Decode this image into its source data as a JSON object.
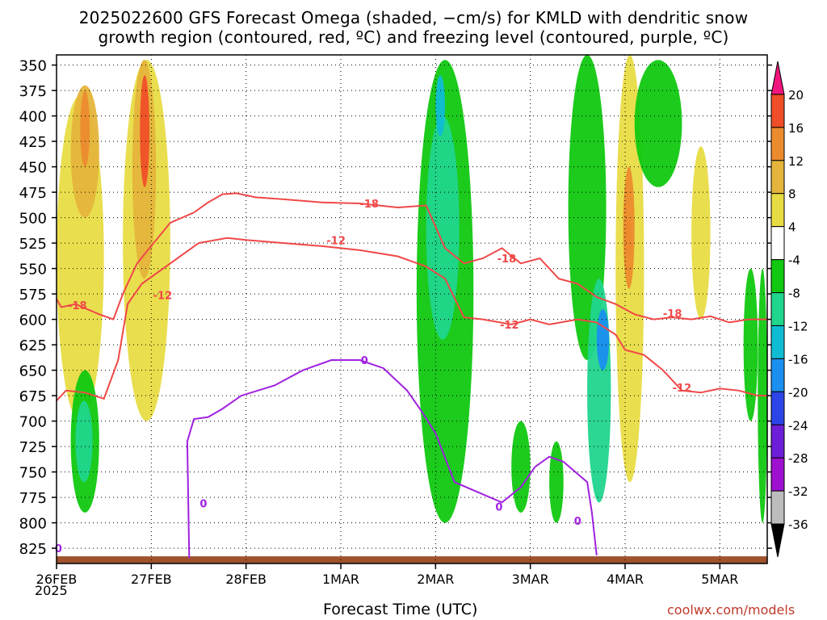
{
  "chart_data": {
    "type": "heatmap",
    "title": "2025022600 GFS Forecast Omega (shaded, −cm/s) for KMLD with dendritic snow",
    "subtitle": "growth region (contoured, red, ºC) and freezing level (contoured, purple, ºC)",
    "xlabel": "Forecast Time (UTC)",
    "ylabel": "",
    "credit": "coolwx.com/models",
    "x_ticks": [
      "26FEB",
      "27FEB",
      "28FEB",
      "1MAR",
      "2MAR",
      "3MAR",
      "4MAR",
      "5MAR"
    ],
    "x_year_label": "2025",
    "y_ticks": [
      350,
      375,
      400,
      425,
      450,
      475,
      500,
      525,
      550,
      575,
      600,
      625,
      650,
      675,
      700,
      725,
      750,
      775,
      800,
      825
    ],
    "y_axis": "pressure (hPa), inverted",
    "xlim_days": [
      0,
      7.5
    ],
    "ylim": [
      340,
      840
    ],
    "grid": true,
    "colorbar": {
      "labels": [
        20,
        16,
        12,
        8,
        4,
        -4,
        -8,
        -12,
        -16,
        -20,
        -24,
        -28,
        -32,
        -36
      ],
      "colors": [
        "#f0167e",
        "#f04e28",
        "#ec8b2e",
        "#e5b43b",
        "#e8dc44",
        "#ffffff",
        "#10c810",
        "#20d58c",
        "#10bcd4",
        "#1a8ff0",
        "#2b45e8",
        "#6d1ed8",
        "#9f10d0",
        "#bdbdbd",
        "#000000"
      ]
    },
    "series": [
      {
        "name": "-18",
        "color": "#f04848",
        "x": [
          0,
          0.05,
          0.2,
          0.45,
          0.6,
          0.7,
          0.85,
          1.2,
          1.45,
          1.6,
          1.75,
          1.9,
          2.1,
          2.4,
          2.8,
          3.2,
          3.6,
          3.9,
          4.1,
          4.3,
          4.5,
          4.7,
          4.9,
          5.1,
          5.3,
          5.5,
          5.7,
          5.9,
          6.1,
          6.3,
          6.5,
          6.7,
          6.9,
          7.1,
          7.3,
          7.5
        ],
        "y": [
          580,
          588,
          585,
          595,
          600,
          575,
          545,
          505,
          495,
          485,
          477,
          476,
          480,
          482,
          485,
          486,
          490,
          488,
          530,
          545,
          540,
          530,
          545,
          540,
          560,
          565,
          578,
          585,
          595,
          600,
          598,
          600,
          597,
          603,
          600,
          600
        ]
      },
      {
        "name": "-12",
        "color": "#f04848",
        "x": [
          0,
          0.1,
          0.3,
          0.5,
          0.65,
          0.75,
          0.9,
          1.2,
          1.5,
          1.8,
          2.0,
          2.4,
          2.8,
          3.2,
          3.6,
          3.9,
          4.1,
          4.3,
          4.5,
          4.8,
          5.0,
          5.2,
          5.5,
          5.7,
          5.9,
          6.0,
          6.2,
          6.4,
          6.6,
          6.8,
          7.0,
          7.2,
          7.4,
          7.5
        ],
        "y": [
          680,
          670,
          672,
          678,
          640,
          585,
          565,
          545,
          525,
          520,
          522,
          525,
          528,
          532,
          538,
          548,
          560,
          598,
          600,
          605,
          600,
          605,
          600,
          603,
          615,
          630,
          635,
          650,
          670,
          672,
          668,
          670,
          675,
          675
        ]
      },
      {
        "name": "0",
        "color": "#a020e0",
        "x": [
          1.4,
          1.38,
          1.45,
          1.6,
          1.75,
          1.95,
          2.3,
          2.6,
          2.9,
          3.2,
          3.45,
          3.7,
          3.85,
          4.0,
          4.2,
          4.45,
          4.7,
          4.9,
          5.05,
          5.2,
          5.35,
          5.5,
          5.6,
          5.65,
          5.7
        ],
        "y": [
          835,
          720,
          698,
          696,
          688,
          675,
          665,
          650,
          640,
          640,
          648,
          670,
          690,
          712,
          760,
          770,
          780,
          765,
          745,
          735,
          740,
          752,
          760,
          790,
          832
        ]
      }
    ],
    "contour_labels": [
      {
        "text": "-18",
        "x": 0.22,
        "y": 586
      },
      {
        "text": "-12",
        "x": 1.12,
        "y": 576
      },
      {
        "text": "-18",
        "x": 3.3,
        "y": 486
      },
      {
        "text": "-12",
        "x": 2.95,
        "y": 522
      },
      {
        "text": "-18",
        "x": 4.75,
        "y": 540
      },
      {
        "text": "-12",
        "x": 4.78,
        "y": 605
      },
      {
        "text": "-18",
        "x": 6.5,
        "y": 594
      },
      {
        "text": "-12",
        "x": 6.6,
        "y": 667
      },
      {
        "text": "0",
        "x": 3.25,
        "y": 640
      },
      {
        "text": "0",
        "x": 1.55,
        "y": 781
      },
      {
        "text": "0",
        "x": 4.67,
        "y": 784
      },
      {
        "text": "0",
        "x": 5.5,
        "y": 798
      },
      {
        "text": "0",
        "x": 0.02,
        "y": 825
      }
    ],
    "omega_regions": [
      {
        "x": [
          0.0,
          0.5
        ],
        "y": [
          380,
          700
        ],
        "value": 5
      },
      {
        "x": [
          0.15,
          0.45
        ],
        "y": [
          370,
          500
        ],
        "value": 10
      },
      {
        "x": [
          0.25,
          0.35
        ],
        "y": [
          375,
          450
        ],
        "value": 14
      },
      {
        "x": [
          0.7,
          1.2
        ],
        "y": [
          345,
          700
        ],
        "value": 5
      },
      {
        "x": [
          0.8,
          1.05
        ],
        "y": [
          345,
          560
        ],
        "value": 10
      },
      {
        "x": [
          0.88,
          0.98
        ],
        "y": [
          360,
          470
        ],
        "value": 17
      },
      {
        "x": [
          0.15,
          0.45
        ],
        "y": [
          650,
          790
        ],
        "value": -7
      },
      {
        "x": [
          0.2,
          0.38
        ],
        "y": [
          680,
          760
        ],
        "value": -11
      },
      {
        "x": [
          3.8,
          4.4
        ],
        "y": [
          345,
          800
        ],
        "value": -7
      },
      {
        "x": [
          3.9,
          4.25
        ],
        "y": [
          400,
          620
        ],
        "value": -11
      },
      {
        "x": [
          4.0,
          4.1
        ],
        "y": [
          360,
          420
        ],
        "value": -15
      },
      {
        "x": [
          5.4,
          5.8
        ],
        "y": [
          340,
          640
        ],
        "value": -7
      },
      {
        "x": [
          5.6,
          5.85
        ],
        "y": [
          560,
          780
        ],
        "value": -9
      },
      {
        "x": [
          5.7,
          5.83
        ],
        "y": [
          590,
          650
        ],
        "value": -20
      },
      {
        "x": [
          5.9,
          6.2
        ],
        "y": [
          340,
          760
        ],
        "value": 6
      },
      {
        "x": [
          5.98,
          6.1
        ],
        "y": [
          450,
          570
        ],
        "value": 13
      },
      {
        "x": [
          6.0,
          6.07
        ],
        "y": [
          500,
          540
        ],
        "value": 15
      },
      {
        "x": [
          6.1,
          6.6
        ],
        "y": [
          345,
          470
        ],
        "value": -7
      },
      {
        "x": [
          4.8,
          5.0
        ],
        "y": [
          700,
          790
        ],
        "value": -7
      },
      {
        "x": [
          5.2,
          5.35
        ],
        "y": [
          720,
          800
        ],
        "value": -7
      },
      {
        "x": [
          7.25,
          7.4
        ],
        "y": [
          550,
          700
        ],
        "value": -7
      },
      {
        "x": [
          7.4,
          7.5
        ],
        "y": [
          550,
          800
        ],
        "value": -7
      },
      {
        "x": [
          6.7,
          6.9
        ],
        "y": [
          430,
          600
        ],
        "value": 6
      }
    ],
    "ground": {
      "color": "#a0522d",
      "top_hpa": 825
    }
  }
}
